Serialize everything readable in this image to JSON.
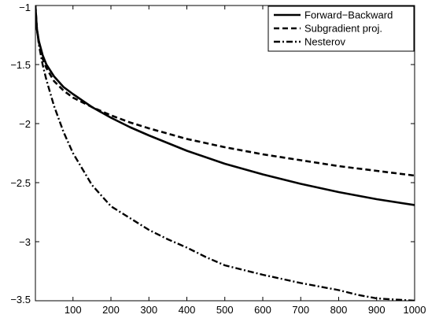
{
  "chart_data": {
    "type": "line",
    "title": "",
    "xlabel": "",
    "ylabel": "",
    "xlim": [
      1,
      1000
    ],
    "ylim": [
      -3.5,
      -1
    ],
    "grid": false,
    "legend_position": "top-right",
    "xticks": [
      100,
      200,
      300,
      400,
      500,
      600,
      700,
      800,
      900,
      1000
    ],
    "xtick_labels": [
      "100",
      "200",
      "300",
      "400",
      "500",
      "600",
      "700",
      "800",
      "900",
      "1000"
    ],
    "yticks": [
      -1,
      -1.5,
      -2,
      -2.5,
      -3,
      -3.5
    ],
    "ytick_labels": [
      "−1",
      "−1.5",
      "−2",
      "−2.5",
      "−3",
      "−3.5"
    ],
    "series": [
      {
        "name": "Forward−Backward",
        "style": "solid",
        "color": "#000000",
        "x": [
          1,
          5,
          10,
          20,
          30,
          50,
          75,
          100,
          150,
          200,
          250,
          300,
          400,
          500,
          600,
          700,
          800,
          900,
          1000
        ],
        "y": [
          -1.0,
          -1.2,
          -1.3,
          -1.42,
          -1.5,
          -1.6,
          -1.69,
          -1.75,
          -1.86,
          -1.95,
          -2.03,
          -2.1,
          -2.23,
          -2.34,
          -2.43,
          -2.51,
          -2.58,
          -2.64,
          -2.69
        ]
      },
      {
        "name": "Subgradient proj.",
        "style": "dashed",
        "color": "#000000",
        "x": [
          1,
          5,
          10,
          20,
          30,
          50,
          75,
          100,
          150,
          200,
          250,
          300,
          400,
          500,
          600,
          700,
          800,
          900,
          1000
        ],
        "y": [
          -1.0,
          -1.2,
          -1.31,
          -1.45,
          -1.53,
          -1.64,
          -1.72,
          -1.78,
          -1.86,
          -1.93,
          -1.99,
          -2.04,
          -2.13,
          -2.2,
          -2.26,
          -2.31,
          -2.36,
          -2.4,
          -2.44
        ]
      },
      {
        "name": "Nesterov",
        "style": "dashdot",
        "color": "#000000",
        "x": [
          1,
          5,
          10,
          20,
          30,
          50,
          75,
          100,
          150,
          200,
          250,
          300,
          350,
          400,
          450,
          500,
          600,
          700,
          750,
          800,
          850,
          900,
          950,
          1000
        ],
        "y": [
          -1.05,
          -1.2,
          -1.33,
          -1.5,
          -1.63,
          -1.85,
          -2.07,
          -2.25,
          -2.52,
          -2.7,
          -2.8,
          -2.9,
          -2.98,
          -3.05,
          -3.13,
          -3.2,
          -3.28,
          -3.35,
          -3.38,
          -3.41,
          -3.45,
          -3.48,
          -3.49,
          -3.5
        ]
      }
    ]
  }
}
